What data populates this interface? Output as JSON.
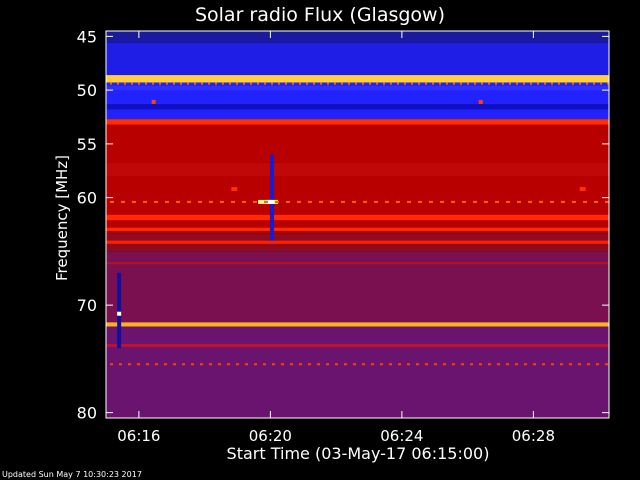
{
  "chart_data": {
    "type": "heatmap",
    "title": "Solar radio Flux (Glasgow)",
    "xlabel": "Start Time (03-May-17 06:15:00)",
    "ylabel": "Frequency [MHz]",
    "x_ticks": [
      "06:16",
      "06:20",
      "06:24",
      "06:28"
    ],
    "x_tick_minutes": [
      1,
      5,
      9,
      13
    ],
    "xlim_minutes": [
      0,
      15.3
    ],
    "y_ticks": [
      45,
      50,
      55,
      60,
      70,
      80
    ],
    "ylim": [
      44.5,
      80.5
    ],
    "colormap": "blue-red-yellow-white",
    "background": "#000000"
  },
  "footer": "Updated Sun May  7 10:30:23 2017"
}
